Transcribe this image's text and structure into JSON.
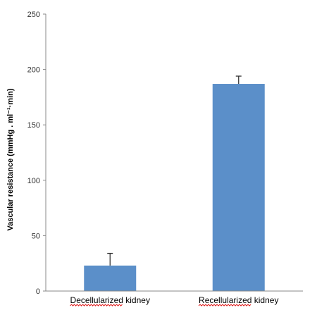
{
  "chart_data": {
    "type": "bar",
    "title": "",
    "xlabel": "",
    "ylabel": "Vascular resistance  (mmHg . ml⁻¹·min)",
    "ylim": [
      0,
      250
    ],
    "yticks": [
      0,
      50,
      100,
      150,
      200,
      250
    ],
    "categories": [
      "Decellularized kidney",
      "Recellularized kidney"
    ],
    "values": [
      23,
      187
    ],
    "error_plus": [
      11,
      7
    ],
    "grid": false,
    "legend": "none",
    "bar_color": "#5b8fc9",
    "error_bar_color": "#333333",
    "spellcheck_underline_color": "#e02020"
  }
}
